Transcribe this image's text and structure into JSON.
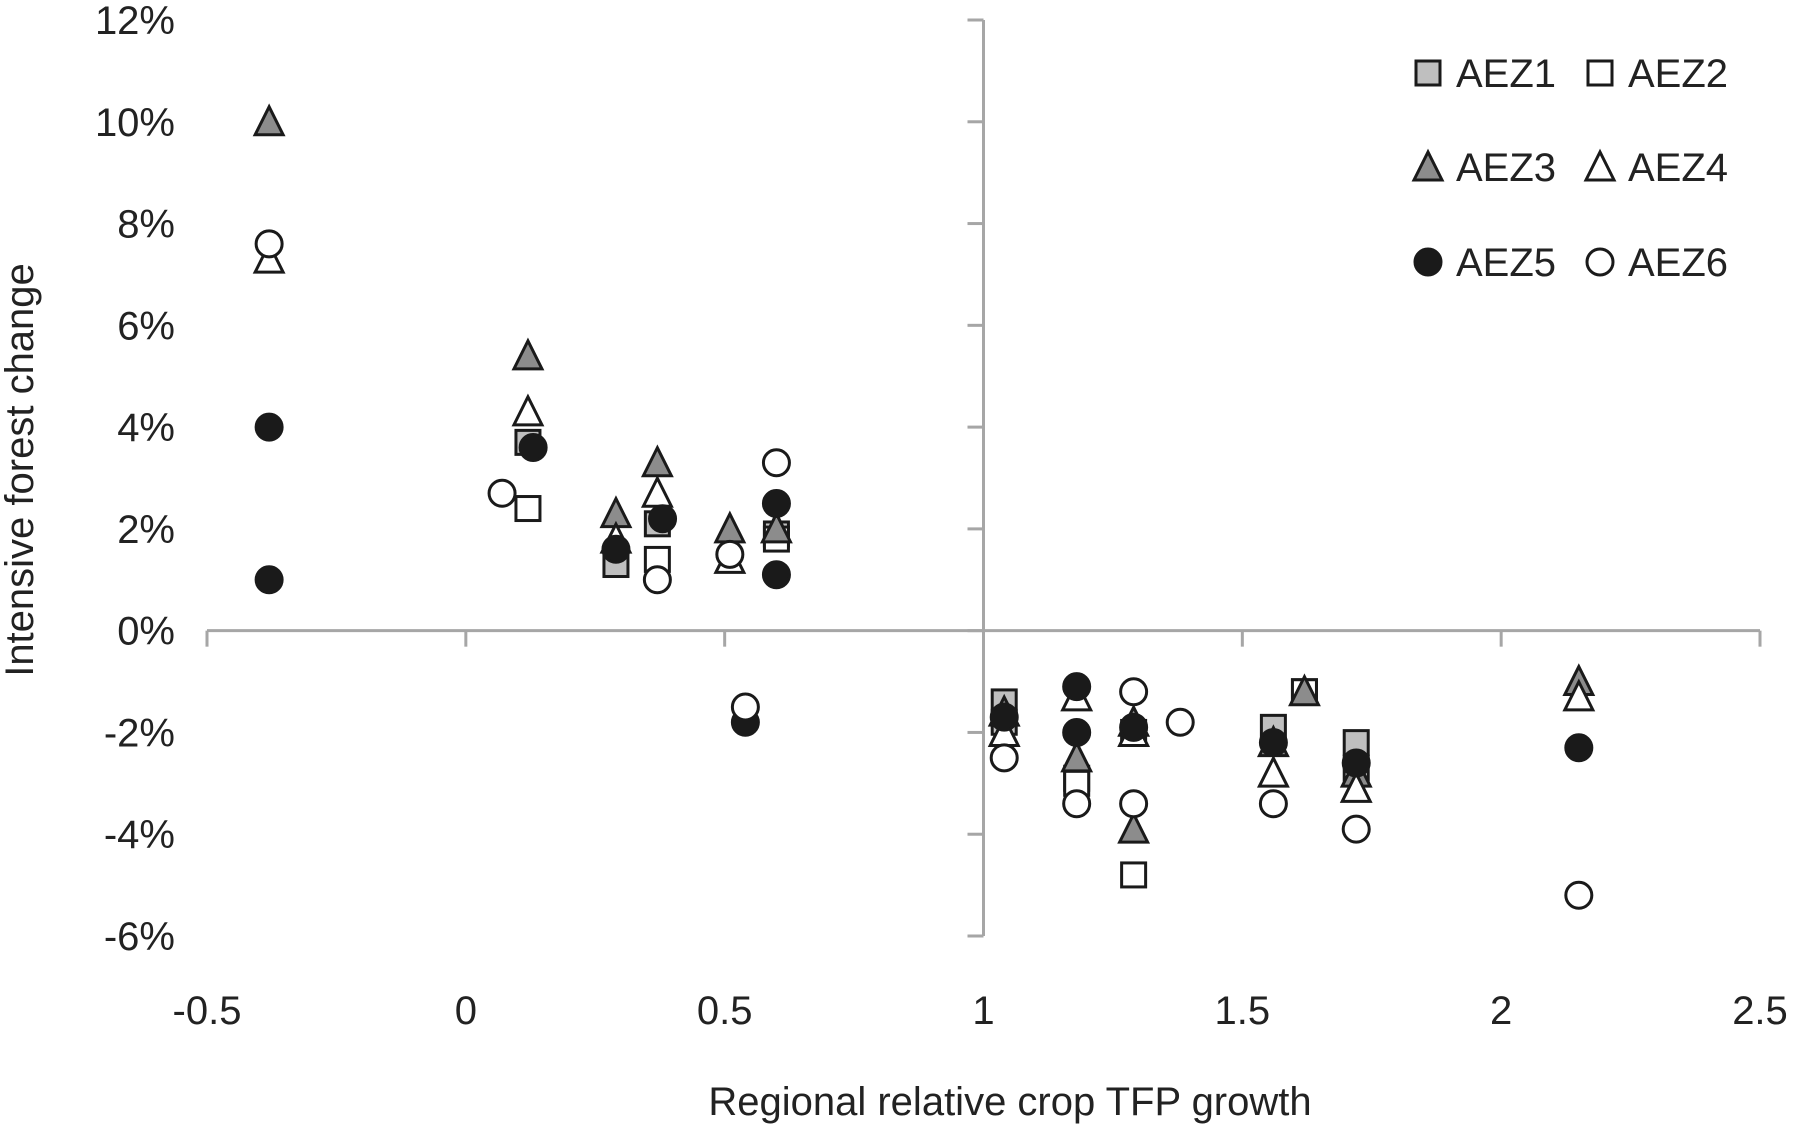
{
  "chart_data": {
    "type": "scatter",
    "title": "",
    "xlabel": "Regional relative crop TFP growth",
    "ylabel": "Intensive forest change",
    "xlim": [
      -0.5,
      2.5
    ],
    "ylim": [
      -0.06,
      0.12
    ],
    "x_ticks": [
      -0.5,
      0,
      0.5,
      1,
      1.5,
      2,
      2.5
    ],
    "x_tick_labels": [
      "-0.5",
      "0",
      "0.5",
      "1",
      "1.5",
      "2",
      "2.5"
    ],
    "y_ticks": [
      -0.06,
      -0.04,
      -0.02,
      0,
      0.02,
      0.04,
      0.06,
      0.08,
      0.1,
      0.12
    ],
    "y_tick_labels": [
      "-6%",
      "-4%",
      "-2%",
      "0%",
      "2%",
      "4%",
      "6%",
      "8%",
      "10%",
      "12%"
    ],
    "grid": false,
    "legend_position": "top-right",
    "legend_columns": 2,
    "series": [
      {
        "name": "AEZ1",
        "marker": "square",
        "fill": "#bfbfbf",
        "points": [
          [
            0.12,
            0.037
          ],
          [
            0.29,
            0.013
          ],
          [
            0.37,
            0.021
          ],
          [
            0.6,
            0.019
          ],
          [
            1.04,
            -0.014
          ],
          [
            1.04,
            -0.018
          ],
          [
            1.18,
            -0.029
          ],
          [
            1.29,
            -0.02
          ],
          [
            1.56,
            -0.019
          ],
          [
            1.62,
            -0.012
          ],
          [
            1.72,
            -0.022
          ]
        ]
      },
      {
        "name": "AEZ2",
        "marker": "square",
        "fill": "#ffffff",
        "points": [
          [
            0.12,
            0.024
          ],
          [
            0.37,
            0.014
          ],
          [
            0.6,
            0.018
          ],
          [
            1.18,
            -0.03
          ],
          [
            1.29,
            -0.048
          ],
          [
            1.62,
            -0.012
          ],
          [
            1.72,
            -0.027
          ]
        ]
      },
      {
        "name": "AEZ3",
        "marker": "triangle",
        "fill": "#8c8c8c",
        "points": [
          [
            -0.38,
            0.1
          ],
          [
            0.12,
            0.054
          ],
          [
            0.29,
            0.023
          ],
          [
            0.37,
            0.033
          ],
          [
            0.51,
            0.02
          ],
          [
            0.6,
            0.02
          ],
          [
            1.04,
            -0.016
          ],
          [
            1.18,
            -0.025
          ],
          [
            1.29,
            -0.039
          ],
          [
            1.29,
            -0.018
          ],
          [
            1.56,
            -0.022
          ],
          [
            1.62,
            -0.012
          ],
          [
            1.72,
            -0.028
          ],
          [
            2.15,
            -0.01
          ]
        ]
      },
      {
        "name": "AEZ4",
        "marker": "triangle",
        "fill": "#ffffff",
        "points": [
          [
            -0.38,
            0.073
          ],
          [
            0.12,
            0.043
          ],
          [
            0.29,
            0.018
          ],
          [
            0.37,
            0.027
          ],
          [
            0.51,
            0.014
          ],
          [
            1.04,
            -0.02
          ],
          [
            1.18,
            -0.013
          ],
          [
            1.29,
            -0.02
          ],
          [
            1.56,
            -0.028
          ],
          [
            1.72,
            -0.031
          ],
          [
            2.15,
            -0.013
          ]
        ]
      },
      {
        "name": "AEZ5",
        "marker": "circle",
        "fill": "#1a1a1a",
        "points": [
          [
            -0.38,
            0.04
          ],
          [
            -0.38,
            0.01
          ],
          [
            0.13,
            0.036
          ],
          [
            0.29,
            0.016
          ],
          [
            0.38,
            0.022
          ],
          [
            0.54,
            -0.018
          ],
          [
            0.6,
            0.025
          ],
          [
            0.6,
            0.011
          ],
          [
            1.04,
            -0.017
          ],
          [
            1.18,
            -0.011
          ],
          [
            1.18,
            -0.02
          ],
          [
            1.29,
            -0.019
          ],
          [
            1.56,
            -0.022
          ],
          [
            1.72,
            -0.026
          ],
          [
            2.15,
            -0.023
          ]
        ]
      },
      {
        "name": "AEZ6",
        "marker": "circle",
        "fill": "#ffffff",
        "points": [
          [
            -0.38,
            0.076
          ],
          [
            0.07,
            0.027
          ],
          [
            0.37,
            0.01
          ],
          [
            0.51,
            0.015
          ],
          [
            0.54,
            -0.015
          ],
          [
            0.6,
            0.033
          ],
          [
            1.04,
            -0.025
          ],
          [
            1.18,
            -0.034
          ],
          [
            1.29,
            -0.012
          ],
          [
            1.29,
            -0.034
          ],
          [
            1.38,
            -0.018
          ],
          [
            1.56,
            -0.034
          ],
          [
            1.72,
            -0.039
          ],
          [
            2.15,
            -0.052
          ]
        ]
      }
    ]
  }
}
